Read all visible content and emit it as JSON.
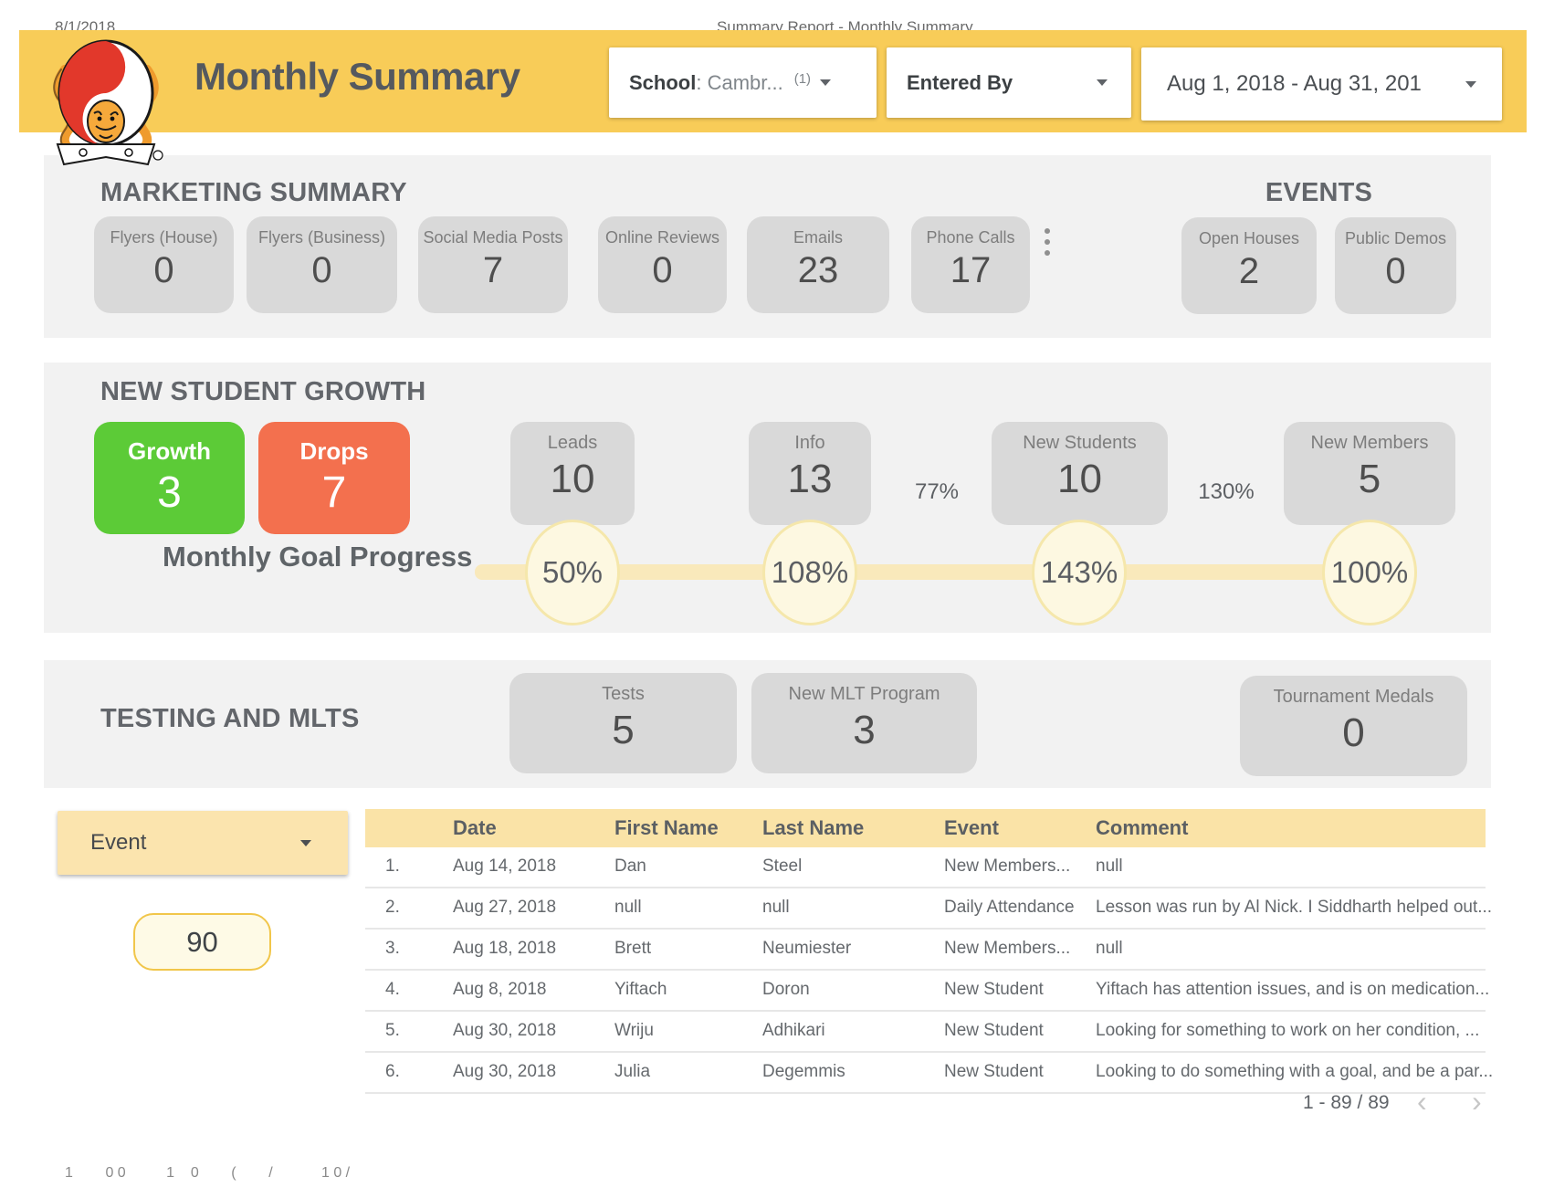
{
  "clipped": {
    "top_left": "8/1/2018",
    "top_center": "Summary Report - Monthly Summary",
    "bottom": "1        0 0          1    0        (        /            1 0 /"
  },
  "header": {
    "title": "Monthly Summary",
    "school_filter": {
      "label": "School",
      "value": ": Cambr...",
      "count": "(1)"
    },
    "entered_by_filter": {
      "label": "Entered By"
    },
    "date_filter": {
      "label": "Aug 1, 2018 - Aug 31, 201"
    }
  },
  "marketing": {
    "title": "MARKETING SUMMARY",
    "cards": [
      {
        "label": "Flyers (House)",
        "value": "0"
      },
      {
        "label": "Flyers (Business)",
        "value": "0"
      },
      {
        "label": "Social Media Posts",
        "value": "7"
      },
      {
        "label": "Online Reviews",
        "value": "0"
      },
      {
        "label": "Emails",
        "value": "23"
      },
      {
        "label": "Phone Calls",
        "value": "17"
      }
    ],
    "more_icon": "kebab-menu"
  },
  "events": {
    "title": "EVENTS",
    "cards": [
      {
        "label": "Open Houses",
        "value": "2"
      },
      {
        "label": "Public Demos",
        "value": "0"
      }
    ]
  },
  "growth": {
    "title": "NEW STUDENT GROWTH",
    "goal_label": "Monthly Goal Progress",
    "growth_card": {
      "label": "Growth",
      "value": "3"
    },
    "drops_card": {
      "label": "Drops",
      "value": "7"
    },
    "funnel_cards": [
      {
        "label": "Leads",
        "value": "10",
        "progress": "50%"
      },
      {
        "label": "Info",
        "value": "13",
        "progress": "108%"
      },
      {
        "label": "New Students",
        "value": "10",
        "progress": "143%"
      },
      {
        "label": "New Members",
        "value": "5",
        "progress": "100%"
      }
    ],
    "conversion_rates": [
      "77%",
      "130%"
    ]
  },
  "testing": {
    "title": "TESTING AND MLTS",
    "cards": [
      {
        "label": "Tests",
        "value": "5"
      },
      {
        "label": "New MLT Program",
        "value": "3"
      },
      {
        "label": "Tournament Medals",
        "value": "0"
      }
    ]
  },
  "records": {
    "filter_label": "Event",
    "total_count": "90",
    "columns": [
      "Date",
      "First Name",
      "Last Name",
      "Event",
      "Comment"
    ],
    "rows": [
      {
        "num": "1.",
        "date": "Aug 14, 2018",
        "first": "Dan",
        "last": "Steel",
        "event": "New Members...",
        "comment": "null"
      },
      {
        "num": "2.",
        "date": "Aug 27, 2018",
        "first": "null",
        "last": "null",
        "event": "Daily Attendance",
        "comment": "Lesson was run by Al Nick. I Siddharth helped out..."
      },
      {
        "num": "3.",
        "date": "Aug 18, 2018",
        "first": "Brett",
        "last": "Neumiester",
        "event": "New Members...",
        "comment": "null"
      },
      {
        "num": "4.",
        "date": "Aug 8, 2018",
        "first": "Yiftach",
        "last": "Doron",
        "event": "New Student",
        "comment": "Yiftach has attention issues, and is on medication..."
      },
      {
        "num": "5.",
        "date": "Aug 30, 2018",
        "first": "Wriju",
        "last": "Adhikari",
        "event": "New Student",
        "comment": "Looking for something to work on her condition, ..."
      },
      {
        "num": "6.",
        "date": "Aug 30, 2018",
        "first": "Julia",
        "last": "Degemmis",
        "event": "New Student",
        "comment": "Looking to do something with a goal, and be a par..."
      }
    ],
    "pagination": "1 - 89 / 89",
    "prev_icon": "‹",
    "next_icon": "›"
  },
  "colors": {
    "header_yellow": "#f8cc58",
    "section_gray": "#f2f2f2",
    "card_gray": "#d9d9d9",
    "growth_green": "#5ccb37",
    "drops_orange": "#f3704e",
    "goal_circle_fill": "#fdf8e1",
    "goal_circle_border": "#f5e7ab",
    "table_header_yellow": "#fae3a7",
    "filter_yellow": "#fbe4ae"
  }
}
